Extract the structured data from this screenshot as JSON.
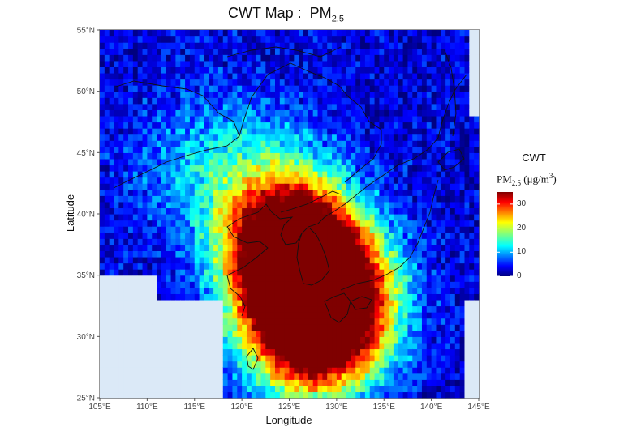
{
  "title": {
    "main": "CWT Map :  PM",
    "sub": "2.5"
  },
  "axes": {
    "xlabel": "Longitude",
    "ylabel": "Latitude",
    "xlim": [
      105,
      145
    ],
    "ylim": [
      25,
      55
    ],
    "xticks": [
      {
        "value": 105,
        "label": "105°E"
      },
      {
        "value": 110,
        "label": "110°E"
      },
      {
        "value": 115,
        "label": "115°E"
      },
      {
        "value": 120,
        "label": "120°E"
      },
      {
        "value": 125,
        "label": "125°E"
      },
      {
        "value": 130,
        "label": "130°E"
      },
      {
        "value": 135,
        "label": "135°E"
      },
      {
        "value": 140,
        "label": "140°E"
      },
      {
        "value": 145,
        "label": "145°E"
      }
    ],
    "yticks": [
      {
        "value": 25,
        "label": "25°N"
      },
      {
        "value": 30,
        "label": "30°N"
      },
      {
        "value": 35,
        "label": "35°N"
      },
      {
        "value": 40,
        "label": "40°N"
      },
      {
        "value": 45,
        "label": "45°N"
      },
      {
        "value": 50,
        "label": "50°N"
      },
      {
        "value": 55,
        "label": "55°N"
      }
    ]
  },
  "legend": {
    "title": "CWT",
    "quantity": "PM",
    "quantity_sub": "2.5",
    "unit_open": " (μg/m",
    "unit_sup": "3",
    "unit_close": ")",
    "ticks": [
      {
        "value": 0,
        "label": "0"
      },
      {
        "value": 10,
        "label": "10"
      },
      {
        "value": 20,
        "label": "20"
      },
      {
        "value": 30,
        "label": "30"
      }
    ],
    "range": [
      0,
      35
    ]
  },
  "chart_data": {
    "type": "heatmap",
    "title": "CWT Map : PM2.5",
    "xlabel": "Longitude",
    "ylabel": "Latitude",
    "cell_size_deg": 0.5,
    "colormap": [
      "#00007f",
      "#0000ff",
      "#007fff",
      "#00ffff",
      "#7fff7f",
      "#ffff00",
      "#ff7f00",
      "#ff0000",
      "#7f0000"
    ],
    "no_data_color": "#dbe9f7",
    "hotspots": [
      {
        "lon": 126.5,
        "lat": 35.5,
        "value": 32
      },
      {
        "lon": 124.5,
        "lat": 38.0,
        "value": 27
      },
      {
        "lon": 129.5,
        "lat": 32.5,
        "value": 30
      },
      {
        "lon": 127.0,
        "lat": 30.5,
        "value": 26
      }
    ],
    "no_data_regions": [
      "southwest corner (105°E–118°E, 25°N–33°N)"
    ]
  }
}
